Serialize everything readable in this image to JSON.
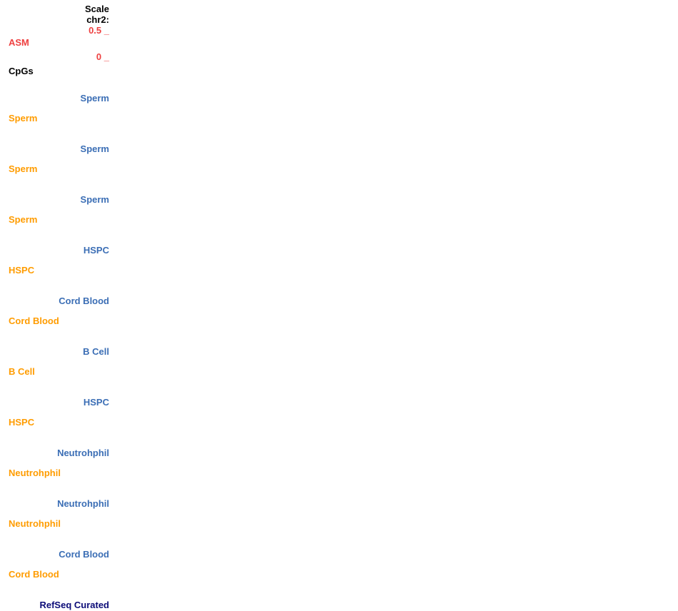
{
  "header": {
    "scale_label": "Scale",
    "chrom_label": "chr2:",
    "asm_scale_max": "0.5 _",
    "asm_track_label": "ASM",
    "asm_scale_min": "0 _",
    "cpgs_track_label": "CpGs"
  },
  "tracks": [
    {
      "right_label": "Sperm",
      "left_label": "Sperm"
    },
    {
      "right_label": "Sperm",
      "left_label": "Sperm"
    },
    {
      "right_label": "Sperm",
      "left_label": "Sperm"
    },
    {
      "right_label": "HSPC",
      "left_label": "HSPC"
    },
    {
      "right_label": "Cord Blood",
      "left_label": "Cord Blood"
    },
    {
      "right_label": "B Cell",
      "left_label": "B Cell"
    },
    {
      "right_label": "HSPC",
      "left_label": "HSPC"
    },
    {
      "right_label": "Neutrohphil",
      "left_label": "Neutrohphil"
    },
    {
      "right_label": "Neutrohphil",
      "left_label": "Neutrohphil"
    },
    {
      "right_label": "Cord Blood",
      "left_label": "Cord Blood"
    }
  ],
  "footer": {
    "refseq_track_label": "RefSeq Curated"
  },
  "colors": {
    "label_black": "#000000",
    "scale_red": "#ee4040",
    "track_blue": "#3b6eb5",
    "track_orange": "#ff9c00",
    "refseq_navy": "#0c0c78"
  }
}
